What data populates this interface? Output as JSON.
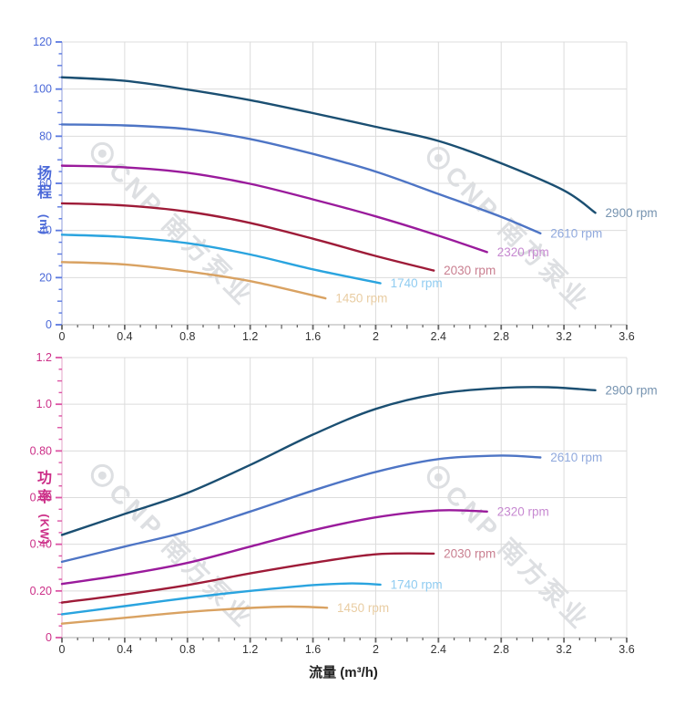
{
  "watermark": {
    "text": "CNP 南方泵业",
    "color": "rgba(142,148,160,0.30)"
  },
  "chart_data": [
    {
      "type": "line",
      "title": "",
      "ylabel": "扬程 (m)",
      "ylabel_chars": [
        "扬",
        "程"
      ],
      "ylabel_unit": "(m)",
      "xlabel": "",
      "xlim": [
        0,
        3.6
      ],
      "ylim": [
        0,
        120
      ],
      "x_major": 0.4,
      "x_minor": 0.1,
      "y_major": 20,
      "y_minor": 5,
      "grid": true,
      "legend_position": "curve-end-labels",
      "x_tick_labels": [
        "0",
        "0.4",
        "0.8",
        "1.2",
        "1.6",
        "2",
        "2.4",
        "2.8",
        "3.2",
        "3.6"
      ],
      "y_tick_labels": [
        "0",
        "20",
        "40",
        "60",
        "80",
        "100",
        "120"
      ],
      "axis_colors": {
        "y_label": "#4a68d8",
        "y_tick": "#5b79e0",
        "y_line": "#b9c2ea",
        "x_label": "#333333",
        "x_tick": "#666666",
        "x_line": "#c9c9c9",
        "grid": "#dcdcdc"
      },
      "series": [
        {
          "name": "2900 rpm",
          "rpm": 2900,
          "color": "#1b4f72",
          "label_color": "#7693b0",
          "points": [
            [
              0,
              105
            ],
            [
              0.4,
              103.5
            ],
            [
              0.8,
              99.8
            ],
            [
              1.2,
              95.3
            ],
            [
              1.6,
              89.8
            ],
            [
              2.0,
              84
            ],
            [
              2.4,
              78
            ],
            [
              2.8,
              68.5
            ],
            [
              3.2,
              57
            ],
            [
              3.4,
              47.5
            ]
          ]
        },
        {
          "name": "2610 rpm",
          "rpm": 2610,
          "color": "#4e75c5",
          "label_color": "#90a9dd",
          "points": [
            [
              0,
              85
            ],
            [
              0.4,
              84.6
            ],
            [
              0.8,
              83
            ],
            [
              1.2,
              78.8
            ],
            [
              1.6,
              72.5
            ],
            [
              2.0,
              65
            ],
            [
              2.4,
              55.5
            ],
            [
              2.8,
              45.8
            ],
            [
              3.05,
              38.8
            ]
          ]
        },
        {
          "name": "2320 rpm",
          "rpm": 2320,
          "color": "#9a1b9c",
          "label_color": "#c789d1",
          "points": [
            [
              0,
              67.5
            ],
            [
              0.4,
              66.8
            ],
            [
              0.8,
              64.5
            ],
            [
              1.2,
              59.8
            ],
            [
              1.6,
              53.2
            ],
            [
              2.0,
              46
            ],
            [
              2.4,
              37.8
            ],
            [
              2.71,
              30.8
            ]
          ]
        },
        {
          "name": "2030 rpm",
          "rpm": 2030,
          "color": "#9e1b38",
          "label_color": "#c97f90",
          "points": [
            [
              0,
              51.5
            ],
            [
              0.4,
              50.6
            ],
            [
              0.8,
              48
            ],
            [
              1.2,
              43.2
            ],
            [
              1.6,
              36.5
            ],
            [
              2.0,
              29.2
            ],
            [
              2.37,
              23
            ]
          ]
        },
        {
          "name": "1740 rpm",
          "rpm": 1740,
          "color": "#2aa4df",
          "label_color": "#90ccf1",
          "points": [
            [
              0,
              38.2
            ],
            [
              0.4,
              37.2
            ],
            [
              0.8,
              34.6
            ],
            [
              1.2,
              29.8
            ],
            [
              1.6,
              23.5
            ],
            [
              2.03,
              17.6
            ]
          ]
        },
        {
          "name": "1450 rpm",
          "rpm": 1450,
          "color": "#d9a262",
          "label_color": "#e9cda3",
          "points": [
            [
              0,
              26.6
            ],
            [
              0.4,
              25.6
            ],
            [
              0.8,
              22.6
            ],
            [
              1.2,
              18.5
            ],
            [
              1.68,
              11.2
            ]
          ]
        }
      ]
    },
    {
      "type": "line",
      "title": "",
      "ylabel": "功率 (KW)",
      "ylabel_chars": [
        "功",
        "率"
      ],
      "ylabel_unit": "(KW)",
      "xlabel": "流量 (m³/h)",
      "xlim": [
        0,
        3.6
      ],
      "ylim": [
        0,
        1.2
      ],
      "x_major": 0.4,
      "x_minor": 0.1,
      "y_major": 0.2,
      "y_minor": 0.05,
      "grid": true,
      "legend_position": "curve-end-labels",
      "x_tick_labels": [
        "0",
        "0.4",
        "0.8",
        "1.2",
        "1.6",
        "2",
        "2.4",
        "2.8",
        "3.2",
        "3.6"
      ],
      "y_tick_labels": [
        "0",
        "0.20",
        "0.40",
        "0.60",
        "0.80",
        "1.0",
        "1.2"
      ],
      "axis_colors": {
        "y_label": "#cc2f88",
        "y_tick": "#dd55a5",
        "y_line": "#eec6de",
        "x_label": "#333333",
        "x_tick": "#666666",
        "x_line": "#c9c9c9",
        "grid": "#dcdcdc"
      },
      "series": [
        {
          "name": "2900 rpm",
          "rpm": 2900,
          "color": "#1b4f72",
          "label_color": "#7693b0",
          "points": [
            [
              0,
              0.44
            ],
            [
              0.4,
              0.53
            ],
            [
              0.8,
              0.62
            ],
            [
              1.2,
              0.74
            ],
            [
              1.6,
              0.87
            ],
            [
              2.0,
              0.98
            ],
            [
              2.4,
              1.045
            ],
            [
              2.8,
              1.07
            ],
            [
              3.1,
              1.073
            ],
            [
              3.4,
              1.06
            ]
          ]
        },
        {
          "name": "2610 rpm",
          "rpm": 2610,
          "color": "#4e75c5",
          "label_color": "#90a9dd",
          "points": [
            [
              0,
              0.325
            ],
            [
              0.4,
              0.39
            ],
            [
              0.8,
              0.455
            ],
            [
              1.2,
              0.54
            ],
            [
              1.6,
              0.63
            ],
            [
              2.0,
              0.71
            ],
            [
              2.4,
              0.765
            ],
            [
              2.8,
              0.78
            ],
            [
              3.05,
              0.772
            ]
          ]
        },
        {
          "name": "2320 rpm",
          "rpm": 2320,
          "color": "#9a1b9c",
          "label_color": "#c789d1",
          "points": [
            [
              0,
              0.23
            ],
            [
              0.4,
              0.27
            ],
            [
              0.8,
              0.32
            ],
            [
              1.2,
              0.39
            ],
            [
              1.6,
              0.46
            ],
            [
              2.0,
              0.515
            ],
            [
              2.4,
              0.545
            ],
            [
              2.71,
              0.54
            ]
          ]
        },
        {
          "name": "2030 rpm",
          "rpm": 2030,
          "color": "#9e1b38",
          "label_color": "#c97f90",
          "points": [
            [
              0,
              0.15
            ],
            [
              0.4,
              0.185
            ],
            [
              0.8,
              0.225
            ],
            [
              1.2,
              0.275
            ],
            [
              1.6,
              0.32
            ],
            [
              2.0,
              0.357
            ],
            [
              2.37,
              0.36
            ]
          ]
        },
        {
          "name": "1740 rpm",
          "rpm": 1740,
          "color": "#2aa4df",
          "label_color": "#90ccf1",
          "points": [
            [
              0,
              0.1
            ],
            [
              0.4,
              0.135
            ],
            [
              0.8,
              0.17
            ],
            [
              1.2,
              0.2
            ],
            [
              1.6,
              0.225
            ],
            [
              1.85,
              0.232
            ],
            [
              2.03,
              0.227
            ]
          ]
        },
        {
          "name": "1450 rpm",
          "rpm": 1450,
          "color": "#d9a262",
          "label_color": "#e9cda3",
          "points": [
            [
              0,
              0.06
            ],
            [
              0.4,
              0.085
            ],
            [
              0.8,
              0.11
            ],
            [
              1.2,
              0.127
            ],
            [
              1.45,
              0.133
            ],
            [
              1.69,
              0.128
            ]
          ]
        }
      ]
    }
  ]
}
